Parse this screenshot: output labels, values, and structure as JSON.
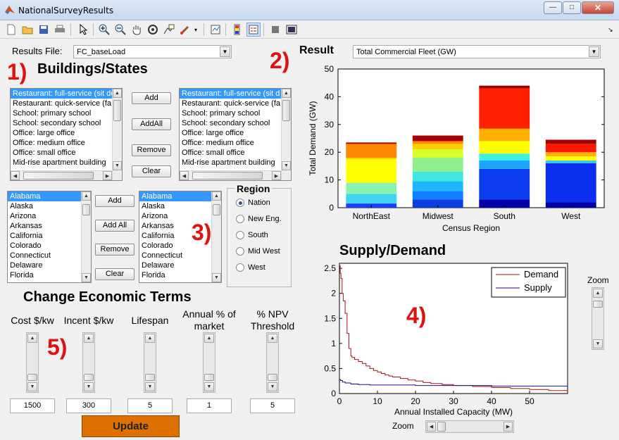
{
  "window": {
    "title": "NationalSurveyResults",
    "minimize": "—",
    "maximize": "□",
    "close": "✕"
  },
  "toolbar": [
    "new-file-icon",
    "open-folder-icon",
    "save-icon",
    "print-icon",
    "pointer-icon",
    "zoom-in-icon",
    "zoom-out-icon",
    "pan-hand-icon",
    "rotate-3d-icon",
    "data-cursor-icon",
    "brush-icon",
    "link-plot-icon",
    "colorbar-icon",
    "legend-icon",
    "hide-plot-tools-icon",
    "show-plot-tools-icon"
  ],
  "results_file": {
    "label": "Results File:",
    "value": "FC_baseLoad"
  },
  "sections": {
    "buildings": "Buildings/States",
    "result": "Result",
    "supply_demand": "Supply/Demand",
    "economic": "Change Economic Terms",
    "region": "Region"
  },
  "markers": {
    "m1": "1)",
    "m2": "2)",
    "m3": "3)",
    "m4": "4)",
    "m5": "5)"
  },
  "buildings_left": [
    "Restaurant: full-service (sit do",
    "Restaurant: quick-service (fa",
    "School: primary school",
    "School: secondary school",
    "Office: large office",
    "Office: medium office",
    "Office: small office",
    "Mid-rise apartment building"
  ],
  "buildings_right": [
    "Restaurant: full-service (sit d",
    "Restaurant: quick-service (fa",
    "School: primary school",
    "School: secondary school",
    "Office: large office",
    "Office: medium office",
    "Office: small office",
    "Mid-rise apartment building"
  ],
  "buttons": {
    "add": "Add",
    "add_all_b": "AddAll",
    "remove": "Remove",
    "clear": "Clear",
    "add_all_s": "Add All",
    "update": "Update"
  },
  "states_left": [
    "Alabama",
    "Alaska",
    "Arizona",
    "Arkansas",
    "California",
    "Colorado",
    "Connecticut",
    "Delaware",
    "Florida"
  ],
  "states_right": [
    "Alabama",
    "Alaska",
    "Arizona",
    "Arkansas",
    "California",
    "Colorado",
    "Connecticut",
    "Delaware",
    "Florida"
  ],
  "regions": [
    {
      "label": "Nation",
      "selected": true
    },
    {
      "label": "New Eng.",
      "selected": false
    },
    {
      "label": "South",
      "selected": false
    },
    {
      "label": "Mid West",
      "selected": false
    },
    {
      "label": "West",
      "selected": false
    }
  ],
  "result_select": "Total Commercial Fleet (GW)",
  "econ": [
    {
      "label": "Cost $/kw",
      "value": "1500"
    },
    {
      "label": "Incent $/kw",
      "value": "300"
    },
    {
      "label": "Lifespan",
      "value": "5"
    },
    {
      "label": "Annual % of\nmarket",
      "value": "1"
    },
    {
      "label": "% NPV\nThreshold",
      "value": "5"
    }
  ],
  "zoom": {
    "right": "Zoom",
    "bottom": "Zoom"
  },
  "chart_data": [
    {
      "type": "bar",
      "stacked": true,
      "categories": [
        "NorthEast",
        "Midwest",
        "South",
        "West"
      ],
      "totals": [
        23.5,
        26,
        44,
        24.5
      ],
      "xlabel": "Census Region",
      "ylabel": "Total Demand (GW)",
      "ylim": [
        0,
        50
      ],
      "yticks": [
        0,
        10,
        20,
        30,
        40,
        50
      ],
      "colormap": "jet",
      "segments": [
        [
          {
            "v": 1.5,
            "c": "#1a3cff"
          },
          {
            "v": 3.5,
            "c": "#3fd6f2"
          },
          {
            "v": 4,
            "c": "#8cf2b0"
          },
          {
            "v": 8.5,
            "c": "#ffff00"
          },
          {
            "v": 0.5,
            "c": "#ffcf00"
          },
          {
            "v": 5,
            "c": "#ff8800"
          },
          {
            "v": 0.5,
            "c": "#a50000"
          }
        ],
        [
          {
            "v": 3,
            "c": "#0a3ee0"
          },
          {
            "v": 3,
            "c": "#0f80ff"
          },
          {
            "v": 3.5,
            "c": "#1fb6ff"
          },
          {
            "v": 3.5,
            "c": "#3fe6dd"
          },
          {
            "v": 5,
            "c": "#90f090"
          },
          {
            "v": 3,
            "c": "#d8ff2a"
          },
          {
            "v": 2,
            "c": "#ffd000"
          },
          {
            "v": 1,
            "c": "#ff8800"
          },
          {
            "v": 2,
            "c": "#a50000"
          }
        ],
        [
          {
            "v": 3,
            "c": "#0000a8"
          },
          {
            "v": 11,
            "c": "#0c3ef0"
          },
          {
            "v": 3,
            "c": "#1aa6ff"
          },
          {
            "v": 2.5,
            "c": "#3ff0e0"
          },
          {
            "v": 4.5,
            "c": "#ffff00"
          },
          {
            "v": 4.5,
            "c": "#ffb000"
          },
          {
            "v": 14.5,
            "c": "#ff2000"
          },
          {
            "v": 1,
            "c": "#a50000"
          }
        ],
        [
          {
            "v": 2,
            "c": "#0000a8"
          },
          {
            "v": 14,
            "c": "#0c2ef0"
          },
          {
            "v": 1,
            "c": "#33c8ff"
          },
          {
            "v": 1.5,
            "c": "#ffff00"
          },
          {
            "v": 1.5,
            "c": "#ffb000"
          },
          {
            "v": 3,
            "c": "#ff1800"
          },
          {
            "v": 1.5,
            "c": "#a50000"
          }
        ]
      ]
    },
    {
      "type": "line",
      "xlabel": "Annual Installed Capacity (MW)",
      "ylabel": "",
      "xlim": [
        0,
        60
      ],
      "ylim": [
        0,
        2.6
      ],
      "xticks": [
        0,
        10,
        20,
        30,
        40,
        50
      ],
      "yticks": [
        0,
        0.5,
        1,
        1.5,
        2,
        2.5
      ],
      "legend_position": "top-right",
      "series": [
        {
          "name": "Demand",
          "color": "#b01010",
          "x": [
            0,
            0.2,
            0.4,
            0.7,
            1,
            1.5,
            2,
            2.5,
            3,
            3.3,
            4,
            5,
            6,
            7,
            8,
            9,
            10,
            11,
            12,
            13,
            14,
            16,
            18,
            20,
            22,
            24,
            27,
            30,
            35,
            40,
            45,
            50,
            55,
            60
          ],
          "y": [
            2.55,
            2.4,
            2.3,
            2.0,
            1.85,
            1.6,
            1.2,
            0.9,
            0.75,
            0.72,
            0.68,
            0.64,
            0.6,
            0.55,
            0.5,
            0.46,
            0.43,
            0.4,
            0.37,
            0.35,
            0.33,
            0.3,
            0.27,
            0.25,
            0.22,
            0.2,
            0.18,
            0.16,
            0.14,
            0.12,
            0.1,
            0.08,
            0.06,
            0.05
          ]
        },
        {
          "name": "Supply",
          "color": "#1010a0",
          "x": [
            0,
            0.3,
            0.8,
            1.5,
            3,
            5,
            8,
            12,
            20,
            30,
            40,
            50,
            60
          ],
          "y": [
            0.28,
            0.26,
            0.23,
            0.21,
            0.19,
            0.18,
            0.17,
            0.17,
            0.16,
            0.16,
            0.15,
            0.15,
            0.15
          ]
        }
      ]
    }
  ]
}
